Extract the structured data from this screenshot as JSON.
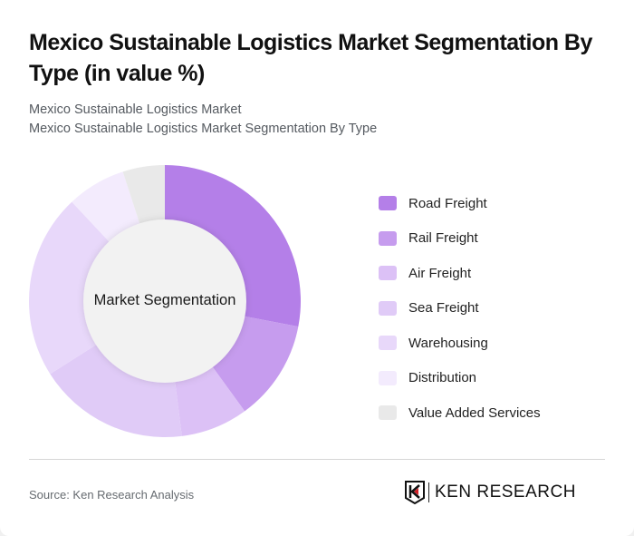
{
  "header": {
    "title": "Mexico Sustainable Logistics Market Segmentation By Type (in value %)",
    "subtitle_line1": "Mexico Sustainable Logistics Market",
    "subtitle_line2": "Mexico Sustainable Logistics Market Segmentation By Type"
  },
  "chart": {
    "center_label": "Market Segmentation"
  },
  "legend": {
    "items": [
      {
        "label": "Road Freight",
        "color": "#b47fe8"
      },
      {
        "label": "Rail Freight",
        "color": "#c69cee"
      },
      {
        "label": "Air Freight",
        "color": "#dcc1f6"
      },
      {
        "label": "Sea Freight",
        "color": "#e0cbf7"
      },
      {
        "label": "Warehousing",
        "color": "#e8d8fa"
      },
      {
        "label": "Distribution",
        "color": "#f3ebfd"
      },
      {
        "label": "Value Added Services",
        "color": "#e9e9e9"
      }
    ]
  },
  "footer": {
    "source": "Source: Ken Research Analysis",
    "logo_text": "KEN RESEARCH"
  },
  "chart_data": {
    "type": "pie",
    "title": "Mexico Sustainable Logistics Market Segmentation By Type (in value %)",
    "subtitle": "Mexico Sustainable Logistics Market Segmentation By Type",
    "center_label": "Market Segmentation",
    "categories": [
      "Road Freight",
      "Rail Freight",
      "Air Freight",
      "Sea Freight",
      "Warehousing",
      "Distribution",
      "Value Added Services"
    ],
    "values": [
      28,
      12,
      8,
      18,
      22,
      7,
      5
    ],
    "colors": [
      "#b47fe8",
      "#c69cee",
      "#dcc1f6",
      "#e0cbf7",
      "#e8d8fa",
      "#f3ebfd",
      "#e9e9e9"
    ],
    "unit": "%",
    "legend_position": "right",
    "donut": true
  }
}
